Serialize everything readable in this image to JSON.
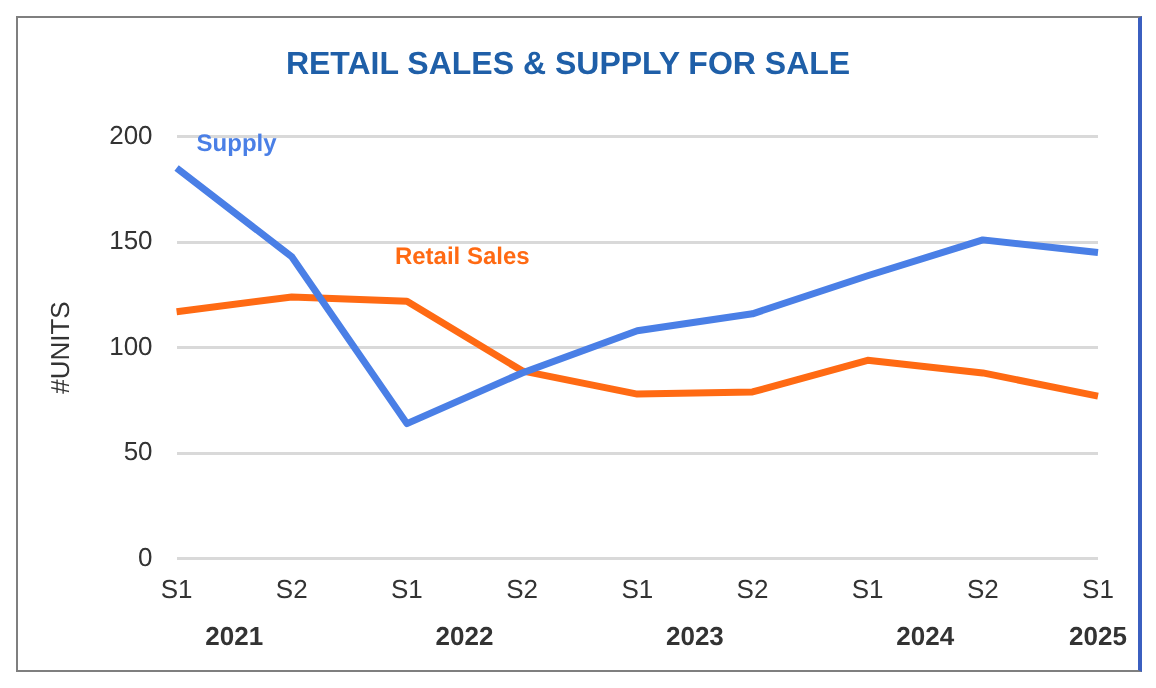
{
  "chart_data": {
    "type": "line",
    "title": "RETAIL SALES & SUPPLY FOR SALE",
    "ylabel": "#UNITS",
    "categories": [
      "S1",
      "S2",
      "S1",
      "S2",
      "S1",
      "S2",
      "S1",
      "S2",
      "S1"
    ],
    "annotations": [
      "2021",
      "2022",
      "2023",
      "2024",
      "2025"
    ],
    "series": [
      {
        "name": "Supply",
        "color": "#4a7fe6",
        "values": [
          185,
          143,
          64,
          88,
          108,
          116,
          134,
          151,
          145
        ]
      },
      {
        "name": "Retail Sales",
        "color": "#ff6a13",
        "values": [
          117,
          124,
          122,
          89,
          78,
          79,
          94,
          88,
          77
        ]
      }
    ],
    "ylim": [
      0,
      200
    ],
    "yticks": [
      0,
      50,
      100,
      150,
      200
    ],
    "grid": "y",
    "legend": false,
    "marker": "none",
    "line_style": "solid"
  }
}
